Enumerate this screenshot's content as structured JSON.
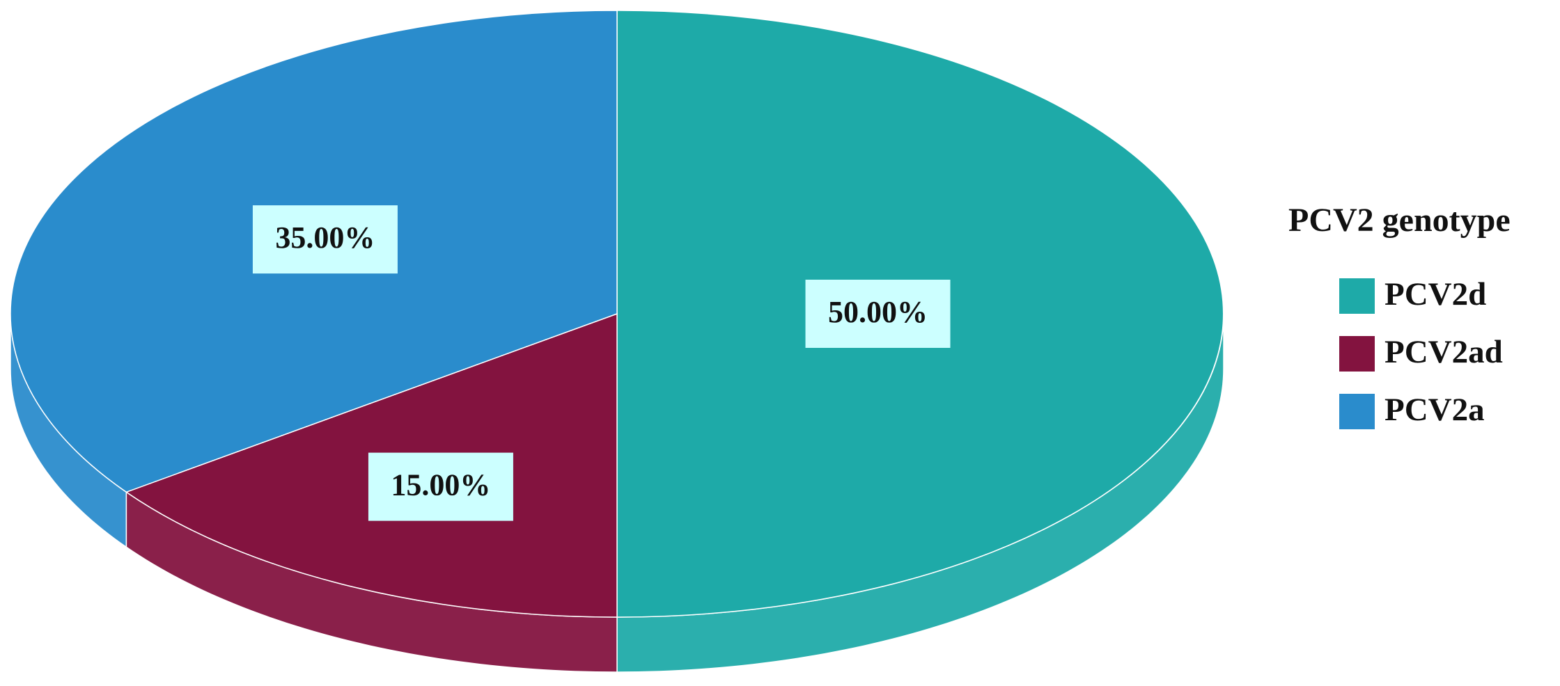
{
  "chart_data": {
    "type": "pie3d",
    "legend_title": "PCV2 genotype",
    "categories": [
      "PCV2d",
      "PCV2ad",
      "PCV2a"
    ],
    "values": [
      50,
      15,
      35
    ],
    "value_labels": [
      "50.00%",
      "15.00%",
      "35.00%"
    ],
    "colors": [
      "#1eaaa8",
      "#83133f",
      "#2a8ccc"
    ],
    "legend": "right"
  }
}
